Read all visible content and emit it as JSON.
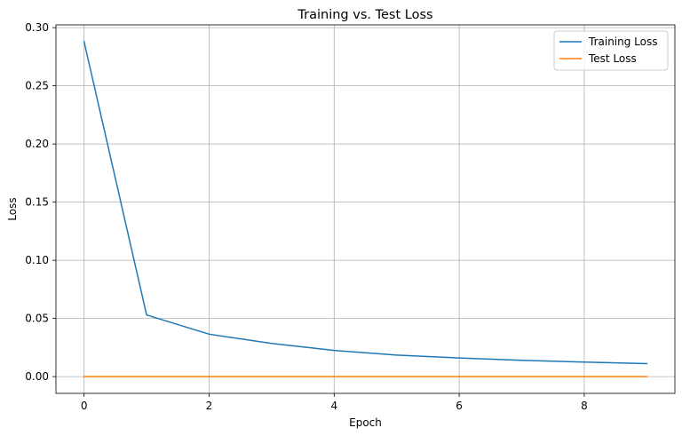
{
  "chart_data": {
    "type": "line",
    "title": "Training vs. Test Loss",
    "xlabel": "Epoch",
    "ylabel": "Loss",
    "x": [
      0,
      1,
      2,
      3,
      4,
      5,
      6,
      7,
      8,
      9
    ],
    "series": [
      {
        "name": "Training Loss",
        "color": "#1f77b4",
        "values": [
          0.288,
          0.053,
          0.0365,
          0.0285,
          0.0225,
          0.0185,
          0.016,
          0.014,
          0.0125,
          0.0112
        ]
      },
      {
        "name": "Test Loss",
        "color": "#ff7f0e",
        "values": [
          0.0,
          0.0,
          0.0,
          0.0,
          0.0,
          0.0,
          0.0,
          0.0,
          0.0,
          0.0
        ]
      }
    ],
    "xlim": [
      -0.45,
      9.45
    ],
    "ylim": [
      -0.0144,
      0.3024
    ],
    "xticks": [
      0,
      2,
      4,
      6,
      8
    ],
    "xtick_labels": [
      "0",
      "2",
      "4",
      "6",
      "8"
    ],
    "yticks": [
      0.0,
      0.05,
      0.1,
      0.15,
      0.2,
      0.25,
      0.3
    ],
    "ytick_labels": [
      "0.00",
      "0.05",
      "0.10",
      "0.15",
      "0.20",
      "0.25",
      "0.30"
    ],
    "grid": true,
    "legend_position": "top-right"
  }
}
